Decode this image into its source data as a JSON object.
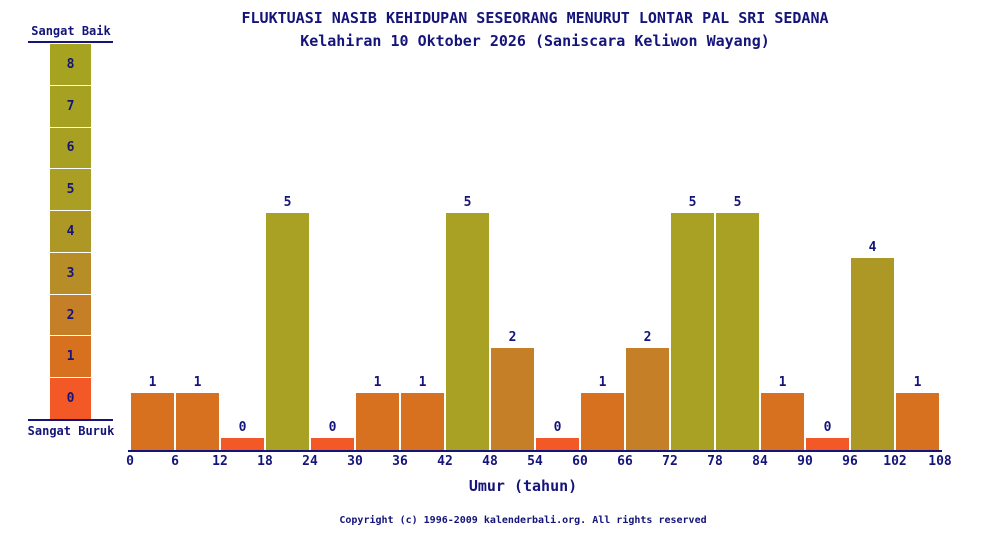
{
  "chart_data": {
    "type": "bar",
    "title": "FLUKTUASI NASIB KEHIDUPAN SESEORANG MENURUT LONTAR PAL SRI SEDANA",
    "subtitle": "Kelahiran 10 Oktober 2026 (Saniscara Keliwon Wayang)",
    "xlabel": "Umur (tahun)",
    "ylabel": "",
    "ylim": [
      0,
      8
    ],
    "grid": false,
    "legend_position": "left",
    "x_tick_labels": [
      "0",
      "6",
      "12",
      "18",
      "24",
      "30",
      "36",
      "42",
      "48",
      "54",
      "60",
      "66",
      "72",
      "78",
      "84",
      "90",
      "96",
      "102",
      "108"
    ],
    "categories": [
      "0-6",
      "6-12",
      "12-18",
      "18-24",
      "24-30",
      "30-36",
      "36-42",
      "42-48",
      "48-54",
      "54-60",
      "60-66",
      "66-72",
      "72-78",
      "78-84",
      "84-90",
      "90-96",
      "96-102",
      "102-108"
    ],
    "values": [
      1,
      1,
      0,
      5,
      0,
      1,
      1,
      5,
      2,
      0,
      1,
      2,
      5,
      5,
      1,
      0,
      4,
      1
    ]
  },
  "legend": {
    "top_label": "Sangat Baik",
    "bottom_label": "Sangat Buruk",
    "scale": [
      {
        "value": "8",
        "color": "#a5a31f"
      },
      {
        "value": "7",
        "color": "#a7a121"
      },
      {
        "value": "6",
        "color": "#a8a022"
      },
      {
        "value": "5",
        "color": "#aa9e24"
      },
      {
        "value": "4",
        "color": "#ad9825"
      },
      {
        "value": "3",
        "color": "#b78d27"
      },
      {
        "value": "2",
        "color": "#c58027"
      },
      {
        "value": "1",
        "color": "#d7711f"
      },
      {
        "value": "0",
        "color": "#f25927"
      }
    ]
  },
  "colors": {
    "background": "#ffffff",
    "text": "#14147a",
    "axis": "#14147a",
    "by_value": {
      "0": "#f25927",
      "1": "#d7711f",
      "2": "#c58027",
      "3": "#b78d27",
      "4": "#ad9825",
      "5": "#a8a124",
      "6": "#a8a022",
      "7": "#a7a121",
      "8": "#a5a31f"
    }
  },
  "footer": "Copyright (c) 1996-2009 kalenderbali.org. All rights reserved"
}
